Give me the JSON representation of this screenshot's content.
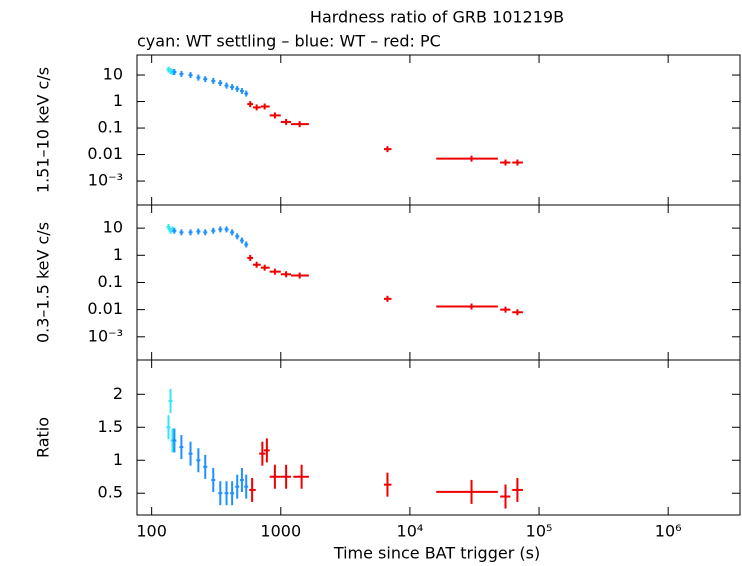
{
  "chart_data": [
    {
      "type": "scatter",
      "title": "Hardness ratio of GRB 101219B",
      "subtitle": "cyan: WT settling – blue: WT – red: PC",
      "y_label": "1.51–10 keV c/s",
      "xlog": true,
      "ylog": true,
      "xlim": [
        77,
        3600000
      ],
      "ylim": [
        0.000125,
        57
      ],
      "xticks": [
        100,
        1000,
        {
          "value": 10000,
          "label": "10⁴"
        },
        {
          "value": 100000,
          "label": "10⁵"
        },
        {
          "value": 1000000,
          "label": "10⁶"
        }
      ],
      "yticks": [
        {
          "value": 0.001,
          "label": "10⁻³"
        },
        0.01,
        0.1,
        1,
        10
      ],
      "series": [
        {
          "name": "WT settling",
          "color": "#33e6f0",
          "x": [
            135,
            140,
            145
          ],
          "values": [
            16,
            14,
            13
          ]
        },
        {
          "name": "WT",
          "color": "#1e90ff",
          "x": [
            150,
            170,
            200,
            230,
            260,
            300,
            340,
            380,
            420,
            460,
            500,
            540
          ],
          "values": [
            13,
            11,
            10,
            8,
            7,
            6,
            5,
            4,
            3.5,
            3,
            2.5,
            2
          ]
        },
        {
          "name": "PC",
          "color": "#ee0000",
          "x": [
            580,
            650,
            750,
            900,
            1100,
            1400,
            6700,
            30000,
            55000,
            68000
          ],
          "x_lo": [
            550,
            610,
            700,
            820,
            1000,
            1200,
            6300,
            16000,
            50000,
            62000
          ],
          "x_hi": [
            610,
            700,
            820,
            1000,
            1200,
            1650,
            7200,
            48000,
            60000,
            75000
          ],
          "values": [
            0.8,
            0.6,
            0.65,
            0.3,
            0.17,
            0.14,
            0.016,
            0.007,
            0.005,
            0.005
          ]
        }
      ]
    },
    {
      "type": "scatter",
      "y_label": "0.3–1.5 keV c/s",
      "xlog": true,
      "ylog": true,
      "xlim": [
        77,
        3600000
      ],
      "ylim": [
        0.00014,
        71
      ],
      "yticks": [
        {
          "value": 0.001,
          "label": "10⁻³"
        },
        0.01,
        0.1,
        1,
        10
      ],
      "series": [
        {
          "name": "WT settling",
          "color": "#33e6f0",
          "x": [
            135,
            140,
            145
          ],
          "values": [
            11,
            8,
            9
          ]
        },
        {
          "name": "WT",
          "color": "#1e90ff",
          "x": [
            150,
            170,
            200,
            230,
            260,
            300,
            340,
            380,
            420,
            460,
            500,
            540
          ],
          "values": [
            8,
            7,
            7,
            7.5,
            7,
            8,
            9,
            9,
            7,
            5,
            3.5,
            2.5
          ]
        },
        {
          "name": "PC",
          "color": "#ee0000",
          "x": [
            580,
            650,
            750,
            900,
            1100,
            1400,
            6700,
            30000,
            55000,
            68000
          ],
          "x_lo": [
            550,
            610,
            700,
            820,
            1000,
            1200,
            6300,
            16000,
            50000,
            62000
          ],
          "x_hi": [
            610,
            700,
            820,
            1000,
            1200,
            1650,
            7200,
            48000,
            60000,
            75000
          ],
          "values": [
            0.8,
            0.45,
            0.35,
            0.25,
            0.2,
            0.18,
            0.025,
            0.013,
            0.01,
            0.008
          ]
        }
      ]
    },
    {
      "type": "scatter",
      "y_label": "Ratio",
      "x_label": "Time since BAT trigger (s)",
      "xlog": true,
      "ylog": false,
      "xlim": [
        77,
        3600000
      ],
      "ylim": [
        0.17,
        2.52
      ],
      "xticks": [
        100,
        1000,
        {
          "value": 10000,
          "label": "10⁴"
        },
        {
          "value": 100000,
          "label": "10⁵"
        },
        {
          "value": 1000000,
          "label": "10⁶"
        }
      ],
      "yticks": [
        0.5,
        1,
        1.5,
        2
      ],
      "series": [
        {
          "name": "WT settling",
          "color": "#33e6f0",
          "x": [
            135,
            140,
            145
          ],
          "values": [
            1.5,
            1.9,
            1.3
          ]
        },
        {
          "name": "WT",
          "color": "#1e90ff",
          "x": [
            150,
            170,
            200,
            230,
            260,
            300,
            340,
            380,
            420,
            460,
            500,
            540
          ],
          "values": [
            1.3,
            1.2,
            1.1,
            1.0,
            0.9,
            0.7,
            0.5,
            0.5,
            0.5,
            0.6,
            0.7,
            0.6
          ]
        },
        {
          "name": "PC",
          "color": "#ee0000",
          "x": [
            600,
            720,
            780,
            900,
            1100,
            1450,
            6700,
            30000,
            55000,
            68000
          ],
          "x_lo": [
            570,
            680,
            740,
            820,
            1000,
            1250,
            6300,
            16000,
            50000,
            62000
          ],
          "x_hi": [
            640,
            760,
            820,
            1000,
            1200,
            1650,
            7200,
            48000,
            60000,
            75000
          ],
          "values": [
            0.55,
            1.1,
            1.15,
            0.75,
            0.75,
            0.75,
            0.63,
            0.52,
            0.45,
            0.55
          ]
        }
      ]
    }
  ]
}
